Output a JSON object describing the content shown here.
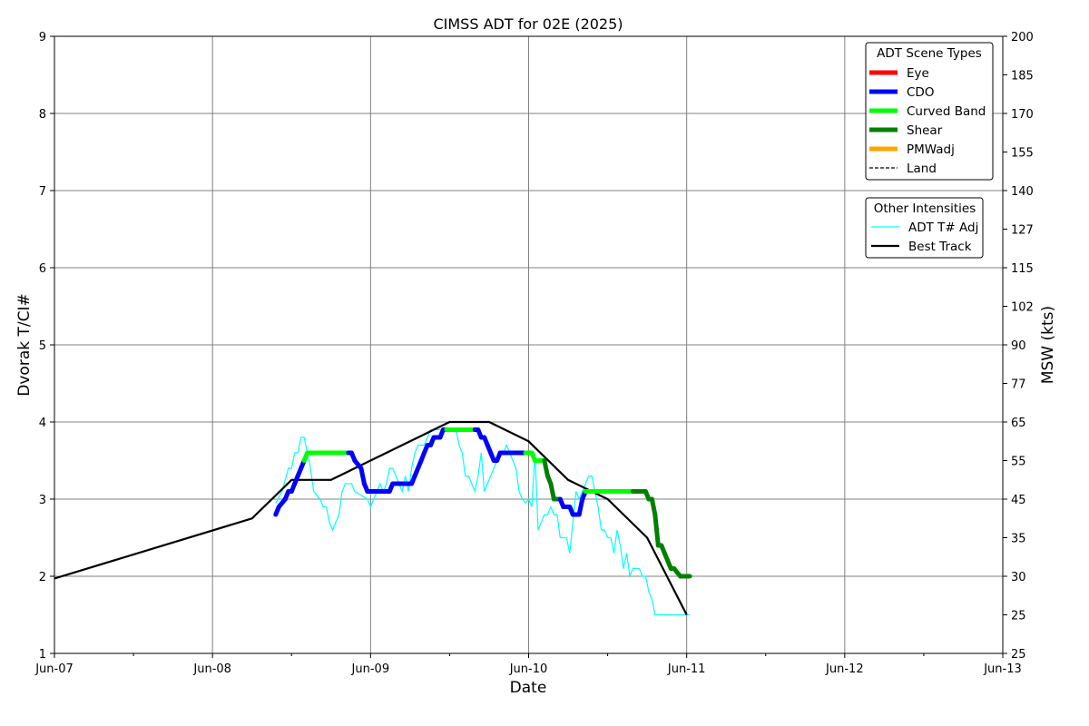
{
  "chart_data": {
    "type": "line",
    "title": "CIMSS ADT for 02E (2025)",
    "xlabel": "Date",
    "ylabel": "Dvorak T/CI#",
    "y2label": "MSW (kts)",
    "x_ticks": [
      "Jun-07",
      "Jun-08",
      "Jun-09",
      "Jun-10",
      "Jun-11",
      "Jun-12",
      "Jun-13"
    ],
    "xlim_days": [
      0,
      6
    ],
    "ylim": [
      1,
      9
    ],
    "y_ticks": [
      1,
      2,
      3,
      4,
      5,
      6,
      7,
      8,
      9
    ],
    "y2_ticks": [
      {
        "t": 1.0,
        "label": "25"
      },
      {
        "t": 1.5,
        "label": "25"
      },
      {
        "t": 2.0,
        "label": "30"
      },
      {
        "t": 2.5,
        "label": "35"
      },
      {
        "t": 3.0,
        "label": "45"
      },
      {
        "t": 3.5,
        "label": "55"
      },
      {
        "t": 4.0,
        "label": "65"
      },
      {
        "t": 4.5,
        "label": "77"
      },
      {
        "t": 5.0,
        "label": "90"
      },
      {
        "t": 5.5,
        "label": "102"
      },
      {
        "t": 6.0,
        "label": "115"
      },
      {
        "t": 6.5,
        "label": "127"
      },
      {
        "t": 7.0,
        "label": "140"
      },
      {
        "t": 7.5,
        "label": "155"
      },
      {
        "t": 8.0,
        "label": "170"
      },
      {
        "t": 8.5,
        "label": "185"
      },
      {
        "t": 9.0,
        "label": "200"
      }
    ],
    "grid": true,
    "legend_placement": "top-right",
    "legends": [
      {
        "title": "ADT Scene Types",
        "entries": [
          {
            "label": "Eye",
            "color": "#ff0000",
            "style": "thick"
          },
          {
            "label": "CDO",
            "color": "#0000ff",
            "style": "thick"
          },
          {
            "label": "Curved Band",
            "color": "#00ff00",
            "style": "thick"
          },
          {
            "label": "Shear",
            "color": "#008000",
            "style": "thick"
          },
          {
            "label": "PMWadj",
            "color": "#ffa500",
            "style": "thick"
          },
          {
            "label": "Land",
            "color": "#000000",
            "style": "dashed"
          }
        ]
      },
      {
        "title": "Other Intensities",
        "entries": [
          {
            "label": "ADT T# Adj",
            "color": "#00ffff",
            "style": "thin"
          },
          {
            "label": "Best Track",
            "color": "#000000",
            "style": "medium"
          }
        ]
      }
    ],
    "series": [
      {
        "name": "Best Track",
        "color": "#000000",
        "x": [
          0.0,
          1.25,
          1.5,
          1.75,
          2.0,
          2.25,
          2.5,
          2.75,
          3.0,
          3.25,
          3.5,
          3.75,
          4.0
        ],
        "y": [
          1.97,
          2.75,
          3.25,
          3.25,
          3.5,
          3.75,
          4.0,
          4.0,
          3.75,
          3.25,
          3.0,
          2.5,
          1.5
        ]
      },
      {
        "name": "ADT T# Adj",
        "color": "#00ffff",
        "x": [
          1.4,
          1.44,
          1.48,
          1.5,
          1.52,
          1.54,
          1.56,
          1.58,
          1.6,
          1.62,
          1.64,
          1.66,
          1.68,
          1.7,
          1.72,
          1.74,
          1.76,
          1.78,
          1.8,
          1.82,
          1.84,
          1.86,
          1.88,
          1.9,
          1.94,
          1.98,
          2.0,
          2.02,
          2.04,
          2.06,
          2.08,
          2.1,
          2.12,
          2.14,
          2.16,
          2.18,
          2.2,
          2.22,
          2.24,
          2.26,
          2.28,
          2.3,
          2.32,
          2.34,
          2.36,
          2.38,
          2.4,
          2.42,
          2.46,
          2.5,
          2.54,
          2.56,
          2.58,
          2.6,
          2.62,
          2.64,
          2.66,
          2.68,
          2.7,
          2.72,
          2.74,
          2.76,
          2.78,
          2.8,
          2.82,
          2.84,
          2.86,
          2.88,
          2.9,
          2.92,
          2.94,
          2.96,
          2.98,
          3.0,
          3.02,
          3.04,
          3.06,
          3.08,
          3.1,
          3.12,
          3.14,
          3.16,
          3.18,
          3.2,
          3.22,
          3.24,
          3.26,
          3.28,
          3.3,
          3.32,
          3.34,
          3.36,
          3.38,
          3.4,
          3.42,
          3.44,
          3.46,
          3.48,
          3.5,
          3.52,
          3.54,
          3.56,
          3.58,
          3.6,
          3.62,
          3.64,
          3.66,
          3.68,
          3.7,
          3.72,
          3.74,
          3.76,
          3.78,
          3.8,
          3.82,
          3.84,
          3.86,
          3.88,
          3.9,
          3.92,
          3.94,
          3.96,
          3.98,
          4.0,
          4.02
        ],
        "y": [
          2.95,
          3.1,
          3.4,
          3.4,
          3.6,
          3.6,
          3.8,
          3.8,
          3.6,
          3.4,
          3.1,
          3.05,
          3.0,
          2.9,
          2.9,
          2.7,
          2.6,
          2.7,
          2.8,
          3.1,
          3.2,
          3.2,
          3.2,
          3.1,
          3.05,
          3.0,
          2.9,
          3.0,
          3.1,
          3.2,
          3.1,
          3.2,
          3.4,
          3.4,
          3.3,
          3.2,
          3.1,
          3.3,
          3.1,
          3.4,
          3.6,
          3.7,
          3.7,
          3.7,
          3.8,
          3.9,
          3.9,
          3.9,
          3.9,
          3.9,
          3.9,
          3.7,
          3.6,
          3.3,
          3.3,
          3.2,
          3.1,
          3.3,
          3.6,
          3.1,
          3.2,
          3.3,
          3.4,
          3.5,
          3.6,
          3.6,
          3.7,
          3.6,
          3.5,
          3.4,
          3.1,
          3.0,
          2.95,
          3.0,
          2.9,
          3.6,
          2.6,
          2.7,
          2.8,
          2.8,
          2.9,
          2.8,
          2.8,
          2.5,
          2.5,
          2.5,
          2.3,
          2.7,
          3.1,
          3.0,
          3.1,
          3.2,
          3.3,
          3.3,
          3.1,
          2.9,
          2.6,
          2.6,
          2.5,
          2.5,
          2.3,
          2.6,
          2.4,
          2.1,
          2.3,
          2.0,
          2.1,
          2.1,
          2.1,
          2.0,
          2.0,
          1.8,
          1.7,
          1.5,
          1.5,
          1.5,
          1.5,
          1.5,
          1.5,
          1.5,
          1.5,
          1.5,
          1.5,
          1.5,
          1.5
        ]
      },
      {
        "name": "ADT",
        "x": [
          1.4,
          1.42,
          1.44,
          1.46,
          1.48,
          1.5,
          1.52,
          1.54,
          1.56,
          1.58,
          1.6,
          1.62,
          1.64,
          1.66,
          1.68,
          1.7,
          1.72,
          1.74,
          1.76,
          1.78,
          1.8,
          1.82,
          1.84,
          1.86,
          1.88,
          1.9,
          1.92,
          1.94,
          1.96,
          1.98,
          2.0,
          2.02,
          2.04,
          2.06,
          2.08,
          2.1,
          2.12,
          2.14,
          2.16,
          2.18,
          2.2,
          2.22,
          2.24,
          2.26,
          2.28,
          2.3,
          2.32,
          2.34,
          2.36,
          2.38,
          2.4,
          2.42,
          2.44,
          2.46,
          2.48,
          2.5,
          2.52,
          2.54,
          2.56,
          2.58,
          2.6,
          2.62,
          2.64,
          2.66,
          2.68,
          2.7,
          2.72,
          2.74,
          2.76,
          2.78,
          2.8,
          2.82,
          2.84,
          2.86,
          2.88,
          2.9,
          2.92,
          2.94,
          2.96,
          2.98,
          3.0,
          3.02,
          3.04,
          3.06,
          3.08,
          3.1,
          3.12,
          3.14,
          3.16,
          3.18,
          3.2,
          3.22,
          3.24,
          3.26,
          3.28,
          3.3,
          3.32,
          3.34,
          3.36,
          3.38,
          3.4,
          3.42,
          3.44,
          3.46,
          3.48,
          3.5,
          3.52,
          3.54,
          3.56,
          3.58,
          3.6,
          3.62,
          3.64,
          3.66,
          3.68,
          3.7,
          3.72,
          3.74,
          3.76,
          3.78,
          3.8,
          3.82,
          3.84,
          3.86,
          3.88,
          3.9,
          3.92,
          3.94,
          3.96,
          3.98,
          4.0,
          4.02
        ],
        "y": [
          2.8,
          2.9,
          2.95,
          3.0,
          3.1,
          3.1,
          3.2,
          3.3,
          3.4,
          3.5,
          3.6,
          3.6,
          3.6,
          3.6,
          3.6,
          3.6,
          3.6,
          3.6,
          3.6,
          3.6,
          3.6,
          3.6,
          3.6,
          3.6,
          3.6,
          3.5,
          3.45,
          3.4,
          3.2,
          3.1,
          3.1,
          3.1,
          3.1,
          3.1,
          3.1,
          3.1,
          3.1,
          3.2,
          3.2,
          3.2,
          3.2,
          3.2,
          3.2,
          3.2,
          3.3,
          3.4,
          3.5,
          3.6,
          3.7,
          3.7,
          3.8,
          3.8,
          3.8,
          3.9,
          3.9,
          3.9,
          3.9,
          3.9,
          3.9,
          3.9,
          3.9,
          3.9,
          3.9,
          3.9,
          3.9,
          3.8,
          3.8,
          3.7,
          3.6,
          3.5,
          3.5,
          3.6,
          3.6,
          3.6,
          3.6,
          3.6,
          3.6,
          3.6,
          3.6,
          3.6,
          3.6,
          3.6,
          3.5,
          3.5,
          3.5,
          3.5,
          3.3,
          3.2,
          3.0,
          3.0,
          3.0,
          2.9,
          2.9,
          2.9,
          2.8,
          2.8,
          2.8,
          3.0,
          3.1,
          3.1,
          3.1,
          3.1,
          3.1,
          3.1,
          3.1,
          3.1,
          3.1,
          3.1,
          3.1,
          3.1,
          3.1,
          3.1,
          3.1,
          3.1,
          3.1,
          3.1,
          3.1,
          3.1,
          3.0,
          3.0,
          2.8,
          2.4,
          2.4,
          2.3,
          2.2,
          2.1,
          2.1,
          2.05,
          2.0,
          2.0,
          2.0,
          2.0
        ],
        "scene": [
          "CDO",
          "CDO",
          "CDO",
          "CDO",
          "CDO",
          "CDO",
          "CDO",
          "CDO",
          "CDO",
          "CDO",
          "Curved Band",
          "Curved Band",
          "Curved Band",
          "Curved Band",
          "Curved Band",
          "Curved Band",
          "Curved Band",
          "Curved Band",
          "Curved Band",
          "Curved Band",
          "Curved Band",
          "Curved Band",
          "Curved Band",
          "Curved Band",
          "CDO",
          "CDO",
          "CDO",
          "CDO",
          "CDO",
          "CDO",
          "CDO",
          "CDO",
          "CDO",
          "CDO",
          "CDO",
          "CDO",
          "CDO",
          "CDO",
          "CDO",
          "CDO",
          "CDO",
          "CDO",
          "CDO",
          "CDO",
          "CDO",
          "CDO",
          "CDO",
          "CDO",
          "CDO",
          "CDO",
          "CDO",
          "CDO",
          "CDO",
          "CDO",
          "CDO",
          "Curved Band",
          "Curved Band",
          "Curved Band",
          "Curved Band",
          "Curved Band",
          "Curved Band",
          "Curved Band",
          "Curved Band",
          "Curved Band",
          "CDO",
          "CDO",
          "CDO",
          "CDO",
          "CDO",
          "CDO",
          "CDO",
          "CDO",
          "CDO",
          "CDO",
          "CDO",
          "CDO",
          "CDO",
          "CDO",
          "CDO",
          "CDO",
          "Curved Band",
          "Curved Band",
          "Curved Band",
          "Curved Band",
          "Curved Band",
          "Curved Band",
          "Shear",
          "Shear",
          "Shear",
          "Shear",
          "Shear",
          "CDO",
          "CDO",
          "CDO",
          "CDO",
          "CDO",
          "CDO",
          "CDO",
          "CDO",
          "Curved Band",
          "Curved Band",
          "Curved Band",
          "Curved Band",
          "Curved Band",
          "Curved Band",
          "Curved Band",
          "Curved Band",
          "Curved Band",
          "Curved Band",
          "Curved Band",
          "Curved Band",
          "Curved Band",
          "Curved Band",
          "Curved Band",
          "Shear",
          "Shear",
          "Shear",
          "Shear",
          "Shear",
          "Shear",
          "Shear",
          "Shear",
          "Shear",
          "Shear",
          "Shear",
          "Shear",
          "Shear",
          "Shear",
          "Shear",
          "Shear",
          "Shear",
          "Shear"
        ]
      }
    ],
    "scene_colors": {
      "Eye": "#ff0000",
      "CDO": "#0000ff",
      "Curved Band": "#00ff00",
      "Shear": "#008000",
      "PMWadj": "#ffa500"
    }
  }
}
